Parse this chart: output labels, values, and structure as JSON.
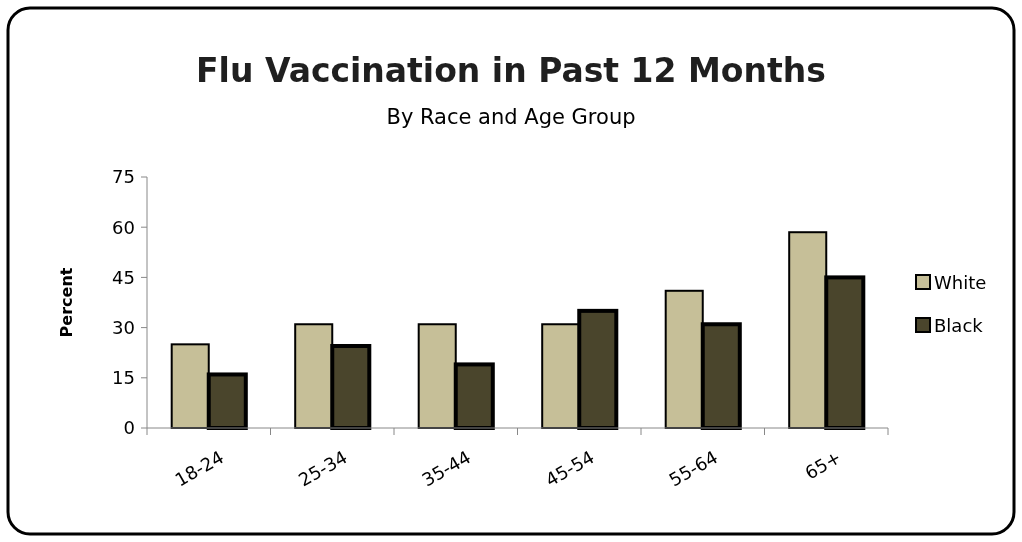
{
  "chart_data": {
    "type": "bar",
    "title": "Flu Vaccination in Past 12 Months",
    "subtitle": "By Race and Age Group",
    "ylabel": "Percent",
    "categories": [
      "18-24",
      "25-34",
      "35-44",
      "45-54",
      "55-64",
      "65+"
    ],
    "series": [
      {
        "name": "White",
        "color": "#c6bf98",
        "values": [
          25,
          31,
          31,
          31,
          41,
          58.5
        ]
      },
      {
        "name": "Black",
        "color": "#4a452c",
        "values": [
          16,
          24.5,
          19,
          35,
          31,
          45
        ]
      }
    ],
    "ylim": [
      0,
      75
    ],
    "yticks": [
      0,
      15,
      30,
      45,
      60,
      75
    ],
    "grid": false,
    "legend": "right"
  }
}
